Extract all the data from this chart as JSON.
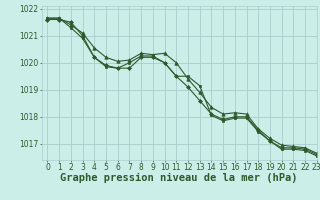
{
  "background_color": "#cceee8",
  "grid_color": "#aacccc",
  "line_color": "#2d5a2d",
  "title": "Graphe pression niveau de la mer (hPa)",
  "xlim": [
    -0.5,
    23
  ],
  "ylim": [
    1016.4,
    1022.1
  ],
  "yticks": [
    1017,
    1018,
    1019,
    1020,
    1021,
    1022
  ],
  "xticks": [
    0,
    1,
    2,
    3,
    4,
    5,
    6,
    7,
    8,
    9,
    10,
    11,
    12,
    13,
    14,
    15,
    16,
    17,
    18,
    19,
    20,
    21,
    22,
    23
  ],
  "series": [
    {
      "x": [
        0,
        1,
        2,
        3,
        4,
        5,
        6,
        7,
        8,
        9,
        10,
        11,
        12,
        13,
        14,
        15,
        16,
        17,
        18,
        19,
        20,
        21,
        22,
        23
      ],
      "y": [
        1021.6,
        1021.6,
        1021.5,
        1021.0,
        1020.2,
        1019.9,
        1019.8,
        1019.8,
        1020.2,
        1020.2,
        1020.0,
        1019.5,
        1019.1,
        1018.6,
        1018.1,
        1017.9,
        1018.0,
        1018.0,
        1017.5,
        1017.1,
        1016.85,
        1016.85,
        1016.8,
        1016.6
      ],
      "marker": "D",
      "marker_size": 2.0,
      "linewidth": 0.8
    },
    {
      "x": [
        0,
        1,
        2,
        3,
        4,
        5,
        6,
        7,
        8,
        9,
        10,
        11,
        12,
        13,
        14,
        15,
        16,
        17,
        18,
        19,
        20,
        21,
        22,
        23
      ],
      "y": [
        1021.65,
        1021.65,
        1021.4,
        1021.1,
        1020.55,
        1020.2,
        1020.05,
        1020.1,
        1020.35,
        1020.3,
        1020.35,
        1020.0,
        1019.4,
        1018.9,
        1018.35,
        1018.1,
        1018.15,
        1018.1,
        1017.55,
        1017.2,
        1016.95,
        1016.9,
        1016.85,
        1016.65
      ],
      "marker": "^",
      "marker_size": 2.5,
      "linewidth": 0.8
    },
    {
      "x": [
        0,
        1,
        2,
        3,
        4,
        5,
        6,
        7,
        8,
        9,
        10,
        11,
        12,
        13,
        14,
        15,
        16,
        17,
        18,
        19,
        20,
        21,
        22,
        23
      ],
      "y": [
        1021.65,
        1021.65,
        1021.3,
        1020.9,
        1020.2,
        1019.85,
        1019.8,
        1020.0,
        1020.25,
        1020.25,
        1020.0,
        1019.5,
        1019.5,
        1019.15,
        1018.05,
        1017.85,
        1017.95,
        1017.95,
        1017.45,
        1017.1,
        1016.8,
        1016.8,
        1016.75,
        1016.55
      ],
      "marker": "s",
      "marker_size": 2.0,
      "linewidth": 0.8
    }
  ],
  "title_fontsize": 7.5,
  "tick_fontsize": 5.5
}
